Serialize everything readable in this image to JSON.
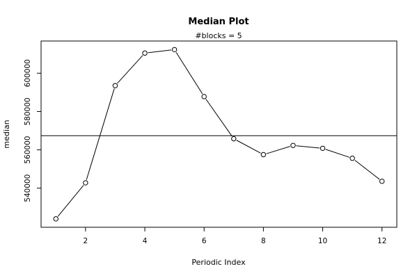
{
  "chart_data": {
    "type": "line",
    "title": "Median Plot",
    "subtitle": "#blocks =  5",
    "xlabel": "Periodic Index",
    "ylabel": "median",
    "x": [
      1,
      2,
      3,
      4,
      5,
      6,
      7,
      8,
      9,
      10,
      11,
      12
    ],
    "series": [
      {
        "values": [
          524000,
          542800,
          593500,
          610500,
          612300,
          587800,
          565800,
          557500,
          562300,
          560800,
          555600,
          543600
        ]
      }
    ],
    "reference_line": 567400,
    "xlim": [
      0.5,
      12.5
    ],
    "ylim": [
      519600,
      616800
    ],
    "xticks": [
      2,
      4,
      6,
      8,
      10,
      12
    ],
    "yticks": [
      540000,
      560000,
      580000,
      600000
    ],
    "grid": false,
    "legend": "none",
    "line_color": "#000000",
    "reference_line_color": "#000000",
    "marker": "open-circle"
  }
}
